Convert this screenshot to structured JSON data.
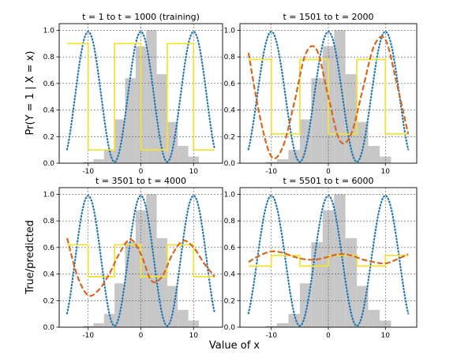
{
  "figure": {
    "xlabel": "Value of x",
    "ylabel_top": "Pr(Y = 1 | X = x)",
    "ylabel_bottom": "True/predicted"
  },
  "colors": {
    "histogram": "#c7c7c7",
    "true_curve": "#1f77b4",
    "step_function": "#f2e33a",
    "prediction": "#d9661a"
  },
  "chart_data": [
    {
      "type": "line",
      "title": "t = 1 to t = 1000 (training)",
      "xlim": [
        -15.5,
        15.5
      ],
      "ylim": [
        0,
        1.05
      ],
      "xticks": [
        -10,
        0,
        10
      ],
      "yticks": [
        0.0,
        0.2,
        0.4,
        0.6,
        0.8,
        1.0
      ],
      "grid": true,
      "histogram": {
        "edges": [
          -11,
          -9,
          -7,
          -5,
          -3,
          -1,
          1,
          3,
          5,
          7,
          9,
          11
        ],
        "heights": [
          0.01,
          0.03,
          0.1,
          0.33,
          0.64,
          0.88,
          1.0,
          0.67,
          0.31,
          0.13,
          0.05
        ]
      },
      "step": {
        "x": [
          -14,
          -10,
          -10,
          -5,
          -5,
          0,
          0,
          5,
          5,
          10,
          10,
          14
        ],
        "y": [
          0.9,
          0.9,
          0.1,
          0.1,
          0.9,
          0.9,
          0.1,
          0.1,
          0.9,
          0.9,
          0.1,
          0.1
        ]
      },
      "prediction": null
    },
    {
      "type": "line",
      "title": "t = 1501 to t = 2000",
      "xlim": [
        -15.5,
        15.5
      ],
      "ylim": [
        0,
        1.05
      ],
      "xticks": [
        -10,
        0,
        10
      ],
      "yticks": [
        0.0,
        0.2,
        0.4,
        0.6,
        0.8,
        1.0
      ],
      "grid": true,
      "histogram": {
        "edges": [
          -11,
          -9,
          -7,
          -5,
          -3,
          -1,
          1,
          3,
          5,
          7,
          9,
          11
        ],
        "heights": [
          0.01,
          0.03,
          0.1,
          0.33,
          0.64,
          0.88,
          1.0,
          0.67,
          0.31,
          0.13,
          0.05
        ]
      },
      "step": {
        "x": [
          -14,
          -10,
          -10,
          -5,
          -5,
          0,
          0,
          5,
          5,
          10,
          10,
          14
        ],
        "y": [
          0.78,
          0.78,
          0.22,
          0.22,
          0.78,
          0.78,
          0.22,
          0.22,
          0.78,
          0.78,
          0.22,
          0.22
        ]
      },
      "prediction": {
        "x": [
          -14,
          -12,
          -10,
          -8,
          -6,
          -4,
          -2,
          0,
          2,
          4,
          6,
          8,
          10,
          12,
          14
        ],
        "y": [
          0.83,
          0.35,
          0.05,
          0.12,
          0.45,
          0.82,
          0.85,
          0.5,
          0.17,
          0.22,
          0.55,
          0.88,
          0.93,
          0.6,
          0.22
        ]
      }
    },
    {
      "type": "line",
      "title": "t = 3501 to t = 4000",
      "xlim": [
        -15.5,
        15.5
      ],
      "ylim": [
        0,
        1.05
      ],
      "xticks": [
        -10,
        0,
        10
      ],
      "yticks": [
        0.0,
        0.2,
        0.4,
        0.6,
        0.8,
        1.0
      ],
      "grid": true,
      "histogram": {
        "edges": [
          -11,
          -9,
          -7,
          -5,
          -3,
          -1,
          1,
          3,
          5,
          7,
          9,
          11
        ],
        "heights": [
          0.01,
          0.03,
          0.1,
          0.33,
          0.64,
          0.88,
          1.0,
          0.67,
          0.31,
          0.13,
          0.05
        ]
      },
      "step": {
        "x": [
          -14,
          -10,
          -10,
          -5,
          -5,
          0,
          0,
          5,
          5,
          10,
          10,
          14
        ],
        "y": [
          0.62,
          0.62,
          0.38,
          0.38,
          0.62,
          0.62,
          0.38,
          0.38,
          0.62,
          0.62,
          0.38,
          0.38
        ]
      },
      "prediction": {
        "x": [
          -14,
          -12,
          -10,
          -8,
          -6,
          -4,
          -2,
          0,
          2,
          4,
          6,
          8,
          10,
          12,
          14
        ],
        "y": [
          0.67,
          0.38,
          0.24,
          0.28,
          0.4,
          0.56,
          0.66,
          0.55,
          0.35,
          0.38,
          0.55,
          0.65,
          0.6,
          0.48,
          0.38
        ]
      }
    },
    {
      "type": "line",
      "title": "t = 5501 to t = 6000",
      "xlim": [
        -15.5,
        15.5
      ],
      "ylim": [
        0,
        1.05
      ],
      "xticks": [
        -10,
        0,
        10
      ],
      "yticks": [
        0.0,
        0.2,
        0.4,
        0.6,
        0.8,
        1.0
      ],
      "grid": true,
      "histogram": {
        "edges": [
          -11,
          -9,
          -7,
          -5,
          -3,
          -1,
          1,
          3,
          5,
          7,
          9,
          11
        ],
        "heights": [
          0.01,
          0.03,
          0.1,
          0.33,
          0.64,
          0.88,
          1.0,
          0.67,
          0.31,
          0.13,
          0.05
        ]
      },
      "step": {
        "x": [
          -14,
          -10,
          -10,
          -5,
          -5,
          0,
          0,
          5,
          5,
          10,
          10,
          14
        ],
        "y": [
          0.46,
          0.46,
          0.54,
          0.54,
          0.46,
          0.46,
          0.54,
          0.54,
          0.46,
          0.46,
          0.54,
          0.54
        ]
      },
      "prediction": {
        "x": [
          -14,
          -12,
          -10,
          -8,
          -6,
          -4,
          -2,
          0,
          2,
          4,
          6,
          8,
          10,
          12,
          14
        ],
        "y": [
          0.49,
          0.54,
          0.57,
          0.56,
          0.53,
          0.51,
          0.51,
          0.53,
          0.55,
          0.54,
          0.51,
          0.49,
          0.48,
          0.51,
          0.55
        ]
      }
    }
  ]
}
